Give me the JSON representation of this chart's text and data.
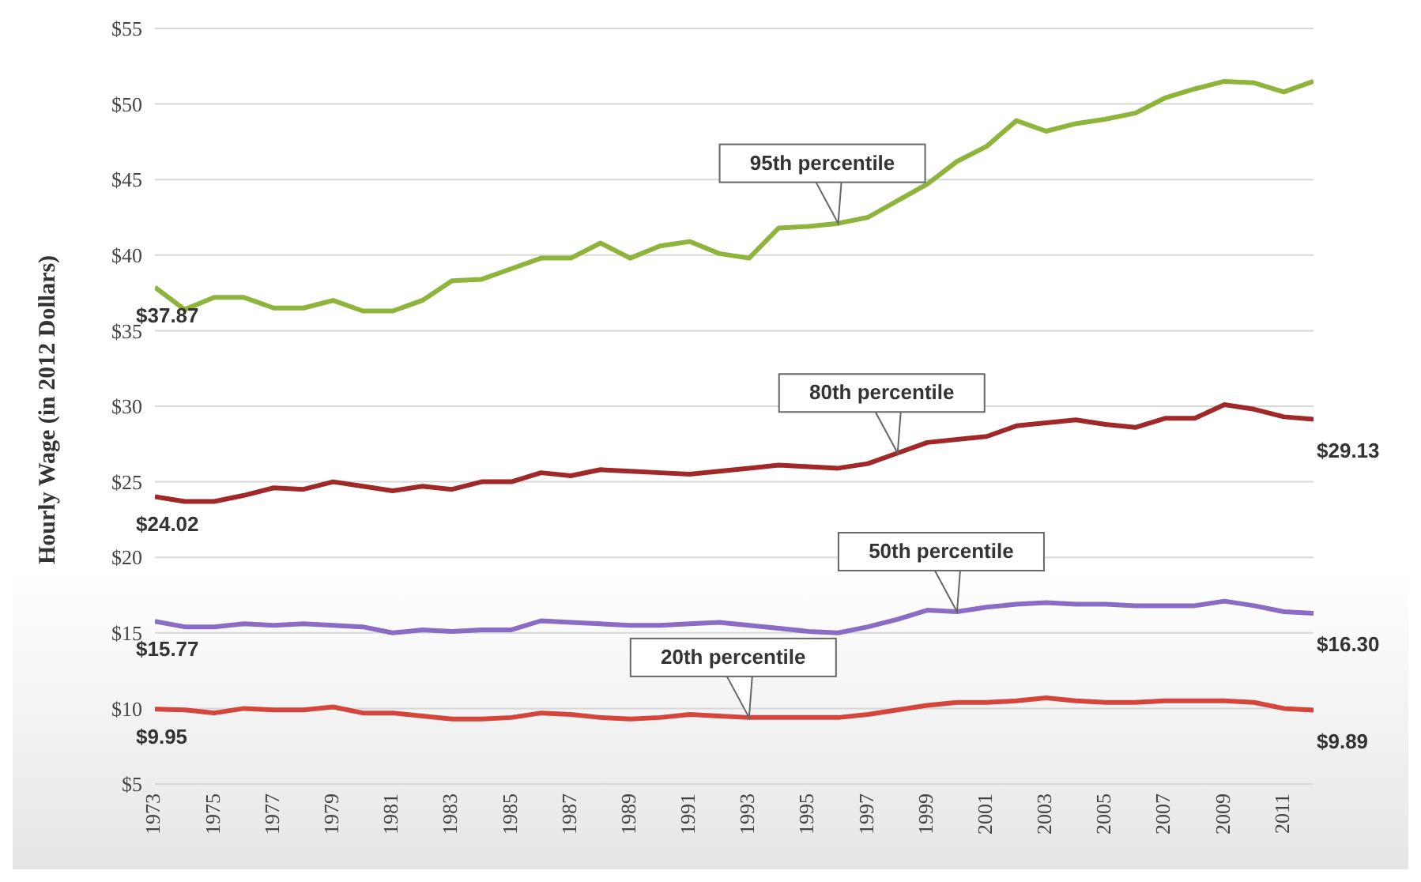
{
  "chart_data": {
    "type": "line",
    "ylabel": "Hourly Wage (in 2012 Dollars)",
    "x": [
      1973,
      1974,
      1975,
      1976,
      1977,
      1978,
      1979,
      1980,
      1981,
      1982,
      1983,
      1984,
      1985,
      1986,
      1987,
      1988,
      1989,
      1990,
      1991,
      1992,
      1993,
      1994,
      1995,
      1996,
      1997,
      1998,
      1999,
      2000,
      2001,
      2002,
      2003,
      2004,
      2005,
      2006,
      2007,
      2008,
      2009,
      2010,
      2011,
      2012
    ],
    "xlim": [
      1973,
      2012
    ],
    "xticks": [
      1973,
      1975,
      1977,
      1979,
      1981,
      1983,
      1985,
      1987,
      1989,
      1991,
      1993,
      1995,
      1997,
      1999,
      2001,
      2003,
      2005,
      2007,
      2009,
      2011
    ],
    "ylim": [
      5,
      55
    ],
    "yticks": [
      {
        "value": 5,
        "label": "$5"
      },
      {
        "value": 10,
        "label": "$10"
      },
      {
        "value": 15,
        "label": "$15"
      },
      {
        "value": 20,
        "label": "$20"
      },
      {
        "value": 25,
        "label": "$25"
      },
      {
        "value": 30,
        "label": "$30"
      },
      {
        "value": 35,
        "label": "$35"
      },
      {
        "value": 40,
        "label": "$40"
      },
      {
        "value": 45,
        "label": "$45"
      },
      {
        "value": 50,
        "label": "$50"
      },
      {
        "value": 55,
        "label": "$55"
      }
    ],
    "grid": "y",
    "legend": false,
    "marker": "none",
    "line_style": "solid",
    "series": [
      {
        "color": "#8fb43c",
        "values": [
          37.87,
          36.4,
          37.2,
          37.2,
          36.5,
          36.5,
          37.0,
          36.3,
          36.3,
          37.0,
          38.3,
          38.4,
          39.1,
          39.8,
          39.8,
          40.8,
          39.8,
          40.6,
          40.9,
          40.1,
          39.8,
          41.8,
          41.9,
          42.1,
          42.5,
          43.6,
          44.7,
          46.2,
          47.2,
          48.9,
          48.2,
          48.7,
          49.0,
          49.4,
          50.4,
          51.0,
          51.5,
          51.4,
          50.8,
          51.5
        ],
        "value_labels": [
          "$37.87",
          null,
          null,
          null,
          null,
          null,
          null,
          null,
          null,
          null,
          null,
          null,
          null,
          null,
          null,
          null,
          null,
          null,
          null,
          null,
          null,
          null,
          null,
          null,
          null,
          null,
          null,
          null,
          null,
          null,
          null,
          null,
          null,
          null,
          null,
          null,
          null,
          null,
          null,
          null
        ]
      },
      {
        "color": "#a02828",
        "values": [
          24.02,
          23.7,
          23.7,
          24.1,
          24.6,
          24.5,
          25.0,
          24.7,
          24.4,
          24.7,
          24.5,
          25.0,
          25.0,
          25.6,
          25.4,
          25.8,
          25.7,
          25.6,
          25.5,
          25.7,
          25.9,
          26.1,
          26.0,
          25.9,
          26.2,
          26.9,
          27.6,
          27.8,
          28.0,
          28.7,
          28.9,
          29.1,
          28.8,
          28.6,
          29.2,
          29.2,
          30.1,
          29.8,
          29.3,
          29.13
        ],
        "value_labels": [
          "$24.02",
          null,
          null,
          null,
          null,
          null,
          null,
          null,
          null,
          null,
          null,
          null,
          null,
          null,
          null,
          null,
          null,
          null,
          null,
          null,
          null,
          null,
          null,
          null,
          null,
          null,
          null,
          null,
          null,
          null,
          null,
          null,
          null,
          null,
          null,
          null,
          null,
          null,
          null,
          "$29.13"
        ]
      },
      {
        "color": "#8a6cc4",
        "values": [
          15.77,
          15.4,
          15.4,
          15.6,
          15.5,
          15.6,
          15.5,
          15.4,
          15.0,
          15.2,
          15.1,
          15.2,
          15.2,
          15.8,
          15.7,
          15.6,
          15.5,
          15.5,
          15.6,
          15.7,
          15.5,
          15.3,
          15.1,
          15.0,
          15.4,
          15.9,
          16.5,
          16.4,
          16.7,
          16.9,
          17.0,
          16.9,
          16.9,
          16.8,
          16.8,
          16.8,
          17.1,
          16.8,
          16.4,
          16.3
        ],
        "value_labels": [
          "$15.77",
          null,
          null,
          null,
          null,
          null,
          null,
          null,
          null,
          null,
          null,
          null,
          null,
          null,
          null,
          null,
          null,
          null,
          null,
          null,
          null,
          null,
          null,
          null,
          null,
          null,
          null,
          null,
          null,
          null,
          null,
          null,
          null,
          null,
          null,
          null,
          null,
          null,
          null,
          "$16.30"
        ]
      },
      {
        "color": "#d4463c",
        "values": [
          9.95,
          9.9,
          9.7,
          10.0,
          9.9,
          9.9,
          10.1,
          9.7,
          9.7,
          9.5,
          9.3,
          9.3,
          9.4,
          9.7,
          9.6,
          9.4,
          9.3,
          9.4,
          9.6,
          9.5,
          9.4,
          9.4,
          9.4,
          9.4,
          9.6,
          9.9,
          10.2,
          10.4,
          10.4,
          10.5,
          10.7,
          10.5,
          10.4,
          10.4,
          10.5,
          10.5,
          10.5,
          10.4,
          10.0,
          9.89
        ],
        "value_labels": [
          "$9.95",
          null,
          null,
          null,
          null,
          null,
          null,
          null,
          null,
          null,
          null,
          null,
          null,
          null,
          null,
          null,
          null,
          null,
          null,
          null,
          null,
          null,
          null,
          null,
          null,
          null,
          null,
          null,
          null,
          null,
          null,
          null,
          null,
          null,
          null,
          null,
          null,
          null,
          null,
          "$9.89"
        ]
      }
    ],
    "annotations": [
      {
        "text": "95th percentile",
        "x": 1996,
        "y": 42.1
      },
      {
        "text": "80th percentile",
        "x": 1998,
        "y": 26.9
      },
      {
        "text": "50th percentile",
        "x": 2000,
        "y": 16.4
      },
      {
        "text": "20th percentile",
        "x": 1993,
        "y": 9.4
      }
    ]
  }
}
